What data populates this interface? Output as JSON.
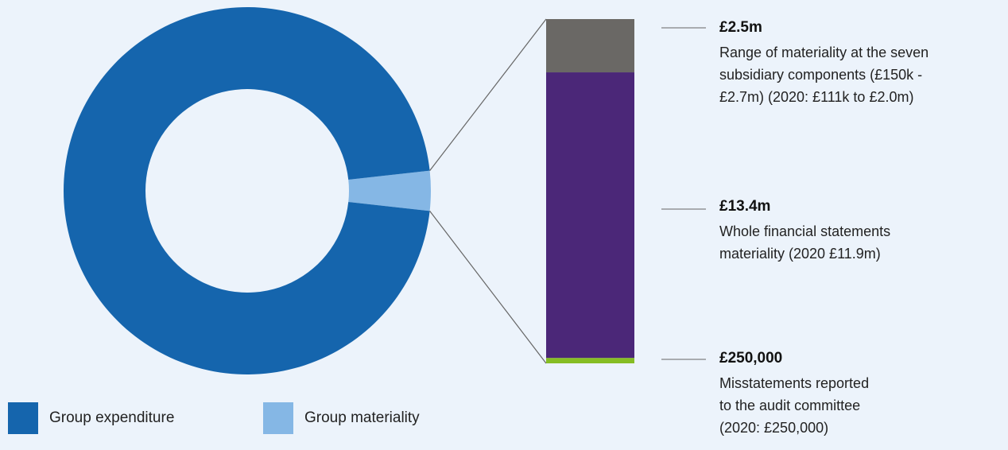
{
  "chart_data": [
    {
      "type": "pie",
      "slices": [
        {
          "label": "Group expenditure",
          "value": 96.5,
          "color": "#1565ad"
        },
        {
          "label": "Group materiality",
          "value": 3.5,
          "color": "#85b7e5"
        }
      ]
    },
    {
      "type": "bar",
      "stacked": true,
      "segments": [
        {
          "value": "£2.5m",
          "description": "Range of materiality at the seven subsidiary components (£150k - £2.7m) (2020: £111k to £2.0m)",
          "color": "#6a6865"
        },
        {
          "value": "£13.4m",
          "description": "Whole financial statements materiality (2020 £11.9m)",
          "color": "#4b2778"
        },
        {
          "value": "£250,000",
          "description": "Misstatements reported to the audit committee (2020: £250,000)",
          "color": "#86bd23"
        }
      ]
    }
  ],
  "legend": {
    "items": [
      {
        "label": "Group expenditure",
        "color": "#1565ad"
      },
      {
        "label": "Group materiality",
        "color": "#85b7e5"
      }
    ]
  },
  "callouts": [
    {
      "value": "£2.5m",
      "lines": [
        "Range of materiality at the seven",
        "subsidiary components (£150k -",
        "£2.7m) (2020: £111k to £2.0m)"
      ]
    },
    {
      "value": "£13.4m",
      "lines": [
        "Whole financial statements",
        "materiality (2020 £11.9m)"
      ]
    },
    {
      "value": "£250,000",
      "lines": [
        "Misstatements reported",
        "to the audit committee",
        "(2020: £250,000)"
      ]
    }
  ],
  "colors": {
    "connector": "#666666",
    "background": "#ecf3fb"
  }
}
